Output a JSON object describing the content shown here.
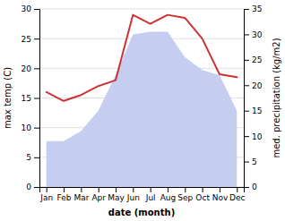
{
  "chart_data": {
    "type": "line",
    "categories": [
      "Jan",
      "Feb",
      "Mar",
      "Apr",
      "May",
      "Jun",
      "Jul",
      "Aug",
      "Sep",
      "Oct",
      "Nov",
      "Dec"
    ],
    "series": [
      {
        "type": "area",
        "axis": "y2",
        "color": "#c5cef0",
        "values": [
          9.0,
          9.0,
          11.0,
          15.0,
          22.0,
          30.0,
          30.5,
          30.5,
          25.5,
          23.0,
          22.0,
          15.0
        ]
      },
      {
        "type": "line",
        "color": "#cc3333",
        "values": [
          16.0,
          14.5,
          15.5,
          17.0,
          18.0,
          29.0,
          27.5,
          29.0,
          28.5,
          25.0,
          19.0,
          18.5
        ]
      }
    ],
    "xlabel": "date (month)",
    "ylabel": "max temp (C)",
    "y2label": "med. precipitation (kg/m2)",
    "ylim": [
      0,
      30
    ],
    "yticks": [
      0,
      5,
      10,
      15,
      20,
      25,
      30
    ],
    "y2lim": [
      0,
      35
    ],
    "y2ticks": [
      0,
      5,
      10,
      15,
      20,
      25,
      30,
      35
    ],
    "grid": true
  }
}
